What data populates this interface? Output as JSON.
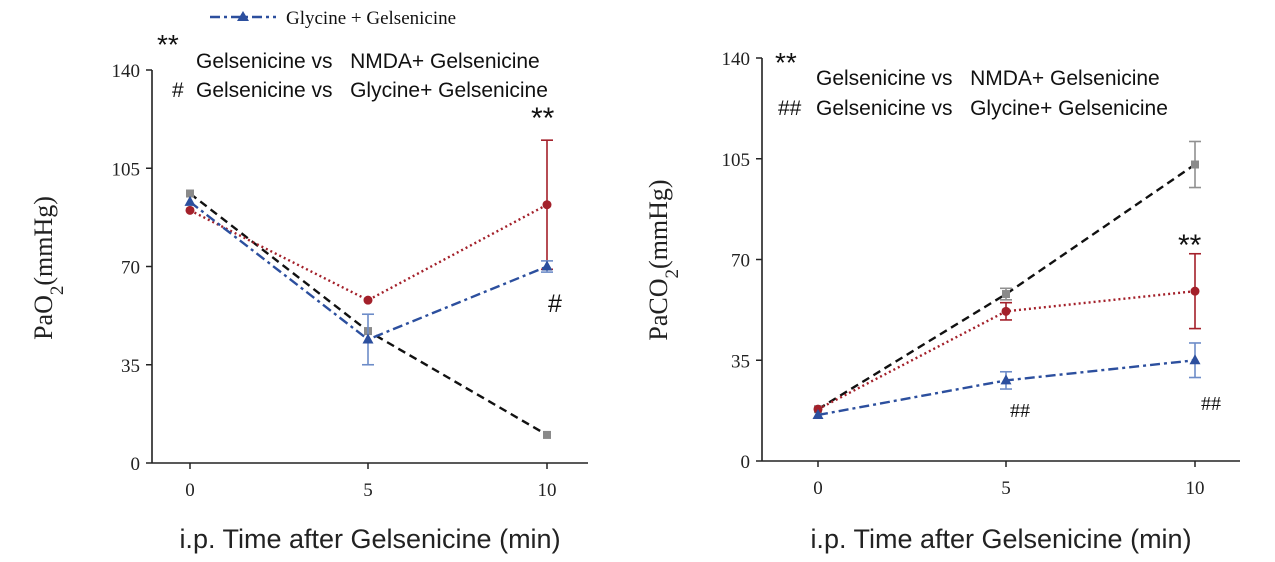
{
  "legend": {
    "glycine_label": "Glycine + Gelsenicine"
  },
  "colors": {
    "gelsenicine": "#111111",
    "gelsenicine_marker": "#8a8a8a",
    "nmda": "#a3202a",
    "glycine": "#2c4f9e",
    "glycine_error": "#6d8cc8",
    "gray_error": "#909090"
  },
  "chart_data": [
    {
      "type": "line",
      "xlabel": "i.p. Time after Gelsenicine (min)",
      "ylabel_prefix": "PaO",
      "ylabel_sub": "2",
      "ylabel_suffix": "(mmHg)",
      "x": [
        0,
        5,
        10
      ],
      "x_ticks": [
        "0",
        "5",
        "10"
      ],
      "ylim": [
        0,
        140
      ],
      "y_ticks": [
        "0",
        "35",
        "70",
        "105",
        "140"
      ],
      "series": [
        {
          "key": "gelsenicine",
          "marker": "square",
          "values": [
            96,
            47,
            10
          ],
          "errors": [
            0,
            0,
            0
          ]
        },
        {
          "key": "nmda",
          "marker": "circle",
          "values": [
            90,
            58,
            92
          ],
          "errors": [
            0,
            0,
            23
          ]
        },
        {
          "key": "glycine",
          "marker": "triangle",
          "values": [
            93,
            44,
            70
          ],
          "errors": [
            0,
            9,
            2
          ]
        }
      ],
      "annotations": {
        "legend_line1_sym": "**",
        "legend_line1_text": "Gelsenicine vs   NMDA+ Gelsenicine",
        "legend_line2_sym": "#",
        "legend_line2_text": "Gelsenicine vs   Glycine+ Gelsenicine",
        "mark_nmda_sym": "**",
        "mark_glycine_sym": "#"
      }
    },
    {
      "type": "line",
      "xlabel": "i.p. Time after Gelsenicine (min)",
      "ylabel_prefix": "PaCO",
      "ylabel_sub": "2",
      "ylabel_suffix": "(mmHg)",
      "x": [
        0,
        5,
        10
      ],
      "x_ticks": [
        "0",
        "5",
        "10"
      ],
      "ylim": [
        0,
        140
      ],
      "y_ticks": [
        "0",
        "35",
        "70",
        "105",
        "140"
      ],
      "series": [
        {
          "key": "gelsenicine",
          "marker": "square",
          "values": [
            18,
            58,
            103
          ],
          "errors": [
            0,
            2,
            8
          ]
        },
        {
          "key": "nmda",
          "marker": "circle",
          "values": [
            18,
            52,
            59
          ],
          "errors": [
            0,
            3,
            13
          ]
        },
        {
          "key": "glycine",
          "marker": "triangle",
          "values": [
            16,
            28,
            35
          ],
          "errors": [
            0,
            3,
            6
          ]
        }
      ],
      "annotations": {
        "legend_line1_sym": "**",
        "legend_line1_text": "Gelsenicine vs   NMDA+ Gelsenicine",
        "legend_line2_sym": "##",
        "legend_line2_text": "Gelsenicine vs   Glycine+ Gelsenicine",
        "mark_nmda_sym": "**",
        "mark_glycine_sym_5": "##",
        "mark_glycine_sym_10": "##"
      }
    }
  ]
}
